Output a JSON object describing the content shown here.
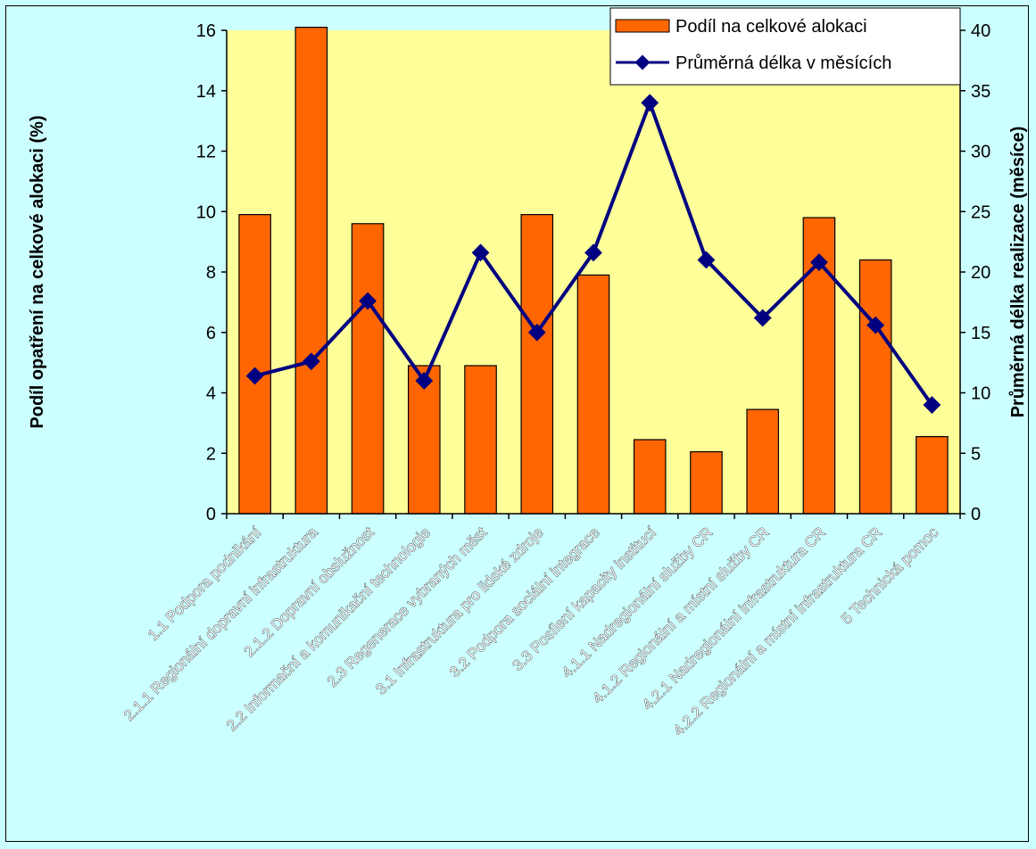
{
  "chart_data": {
    "type": "bar+line",
    "categories": [
      "1.1 Podpora podnikání",
      "2.1.1 Regionální dopravní infrastruktura",
      "2.1.2 Dopravní obslužnost",
      "2.2 Informační a komunikační technologie",
      "2.3 Regenerace vybraných měst",
      "3.1 Infrastruktura pro lidské zdroje",
      "3.2 Podpora sociální integrace",
      "3.3 Posílení kapacity institucí",
      "4.1.1 Nadregionální služby CR",
      "4.1.2 Regionální a místní služby CR",
      "4.2.1 Nadregionální infrastruktura CR",
      "4.2.2 Regionální a místní infrastruktura CR",
      "5 Technická pomoc"
    ],
    "series": [
      {
        "name": "Podíl na celkové alokaci",
        "type": "bar",
        "axis": "left",
        "color": "#ff6600",
        "values": [
          9.9,
          16.1,
          9.6,
          4.9,
          4.9,
          9.9,
          7.9,
          2.45,
          2.05,
          3.45,
          9.8,
          8.4,
          2.55
        ]
      },
      {
        "name": "Průměrná délka v měsících",
        "type": "line",
        "axis": "right",
        "color": "#000080",
        "values": [
          11.4,
          12.6,
          17.6,
          11.0,
          21.6,
          15.0,
          21.6,
          34.0,
          21.0,
          16.2,
          20.8,
          15.6,
          9.0
        ]
      }
    ],
    "ylabel": "Podíl opatření na celkové alokaci (%)",
    "y2label": "Průměrná délka realizace (měsíce)",
    "ylim": [
      0,
      16
    ],
    "yticks": [
      0,
      2,
      4,
      6,
      8,
      10,
      12,
      14,
      16
    ],
    "y2lim": [
      0,
      40
    ],
    "y2ticks": [
      0,
      5,
      10,
      15,
      20,
      25,
      30,
      35,
      40
    ],
    "plot_background": "#ffff99",
    "page_background": "#ccffff",
    "grid": false,
    "legend_position": "top-right"
  }
}
